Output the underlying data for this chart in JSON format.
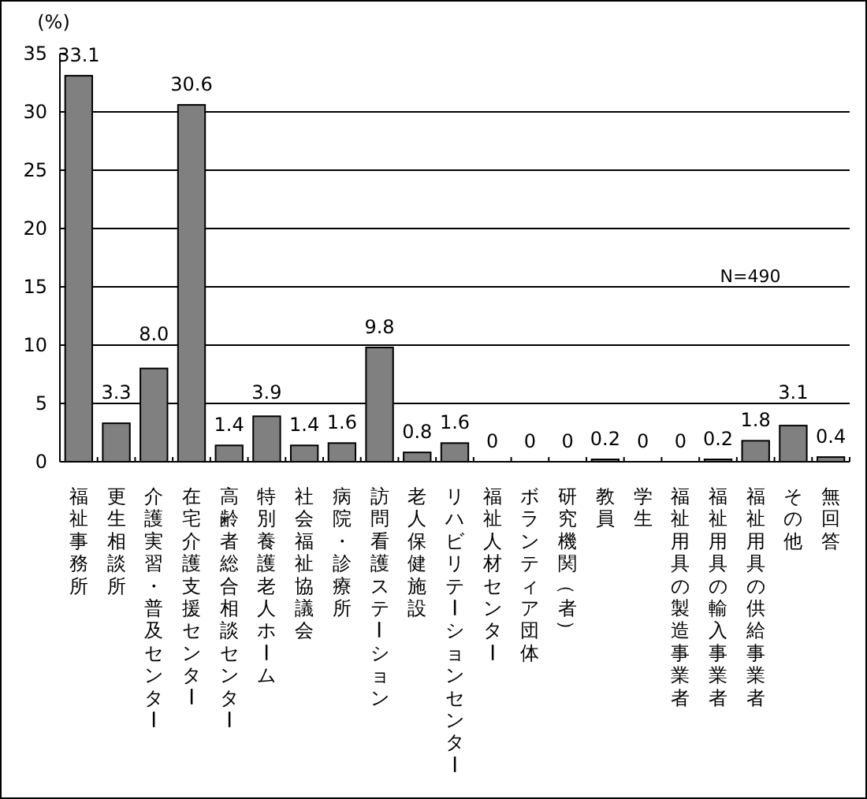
{
  "chart_data": {
    "type": "bar",
    "ylabel": "(%)",
    "categories": [
      "福祉事務所",
      "更生相談所",
      "介護実習・普及センター",
      "在宅介護支援センター",
      "高齢者総合相談センター",
      "特別養護老人ホーム",
      "社会福祉協議会",
      "病院・診療所",
      "訪問看護ステーション",
      "老人保健施設",
      "リハビリテーションセンター",
      "福祉人材センター",
      "ボランティア団体",
      "研究機関（者）",
      "教員",
      "学生",
      "福祉用具の製造事業者",
      "福祉用具の輸入事業者",
      "福祉用具の供給事業者",
      "その他",
      "無回答"
    ],
    "values": [
      33.1,
      3.3,
      8.0,
      30.6,
      1.4,
      3.9,
      1.4,
      1.6,
      9.8,
      0.8,
      1.6,
      0,
      0,
      0,
      0.2,
      0,
      0,
      0.2,
      1.8,
      3.1,
      0.4
    ],
    "value_labels": [
      "33.1",
      "3.3",
      "8.0",
      "30.6",
      "1.4",
      "3.9",
      "1.4",
      "1.6",
      "9.8",
      "0.8",
      "1.6",
      "0",
      "0",
      "0",
      "0.2",
      "0",
      "0",
      "0.2",
      "1.8",
      "3.1",
      "0.4"
    ],
    "color": "#808080",
    "ylim": [
      0,
      35
    ],
    "yticks": [
      0,
      5,
      10,
      15,
      20,
      25,
      30,
      35
    ],
    "grid": "y",
    "annotations": [
      "N=490"
    ]
  }
}
